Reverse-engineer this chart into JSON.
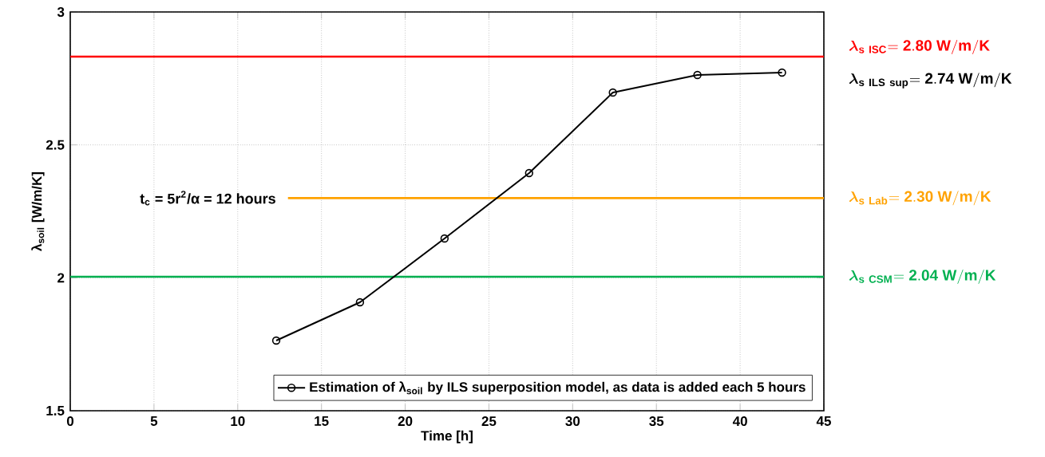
{
  "chart_data": {
    "type": "line",
    "xlabel": "Time [h]",
    "ylabel": "λ$_{soil}$ [W/m/K]",
    "xlim": [
      0,
      45
    ],
    "ylim": [
      1.5,
      3
    ],
    "xticks": [
      0,
      5,
      10,
      15,
      20,
      25,
      30,
      35,
      40,
      45
    ],
    "yticks": [
      1.5,
      2,
      2.5,
      3
    ],
    "grid": true,
    "legend": "bottom right",
    "marker": "circle",
    "line_style": "solid",
    "series": [
      {
        "type": "line",
        "color": "#ffa200",
        "marker": "none",
        "x": [
          13,
          45
        ],
        "values": [
          2.3,
          2.3
        ]
      },
      {
        "name": "Estimation of λ$_{soil}$ by ILS superposition model, as data is added each 5 hours",
        "color": "#000000",
        "x": [
          12.3,
          17.3,
          22.35,
          27.4,
          32.4,
          37.45,
          42.5
        ],
        "values": [
          1.764,
          1.908,
          2.148,
          2.394,
          2.697,
          2.763,
          2.772
        ]
      }
    ],
    "ref_lines": [
      {
        "axis": "y",
        "value": 2.832,
        "color": "#ff0000"
      },
      {
        "axis": "y",
        "value": 2.004,
        "color": "#00b050"
      }
    ],
    "annotations": [
      "t$_{c}$ = 5r$^{2}$/α = 12 hours",
      "\\boldsymbol{\\lambda}_{\\mathbf{s\\ ISC}} \\mathbf{= 2.80\\ W/m/K}",
      "\\boldsymbol{\\lambda}_{\\mathbf{s\\ ILS\\ sup}} \\mathbf{= 2.74\\ W/m/K}",
      "\\boldsymbol{\\lambda}_{\\mathbf{s\\ CSM}} \\mathbf{= 2.04\\ W/m/K}",
      "\\boldsymbol{\\lambda}_{\\mathbf{s\\ Lab}} \\mathbf{= 2.30\\ W/m/K}"
    ]
  }
}
